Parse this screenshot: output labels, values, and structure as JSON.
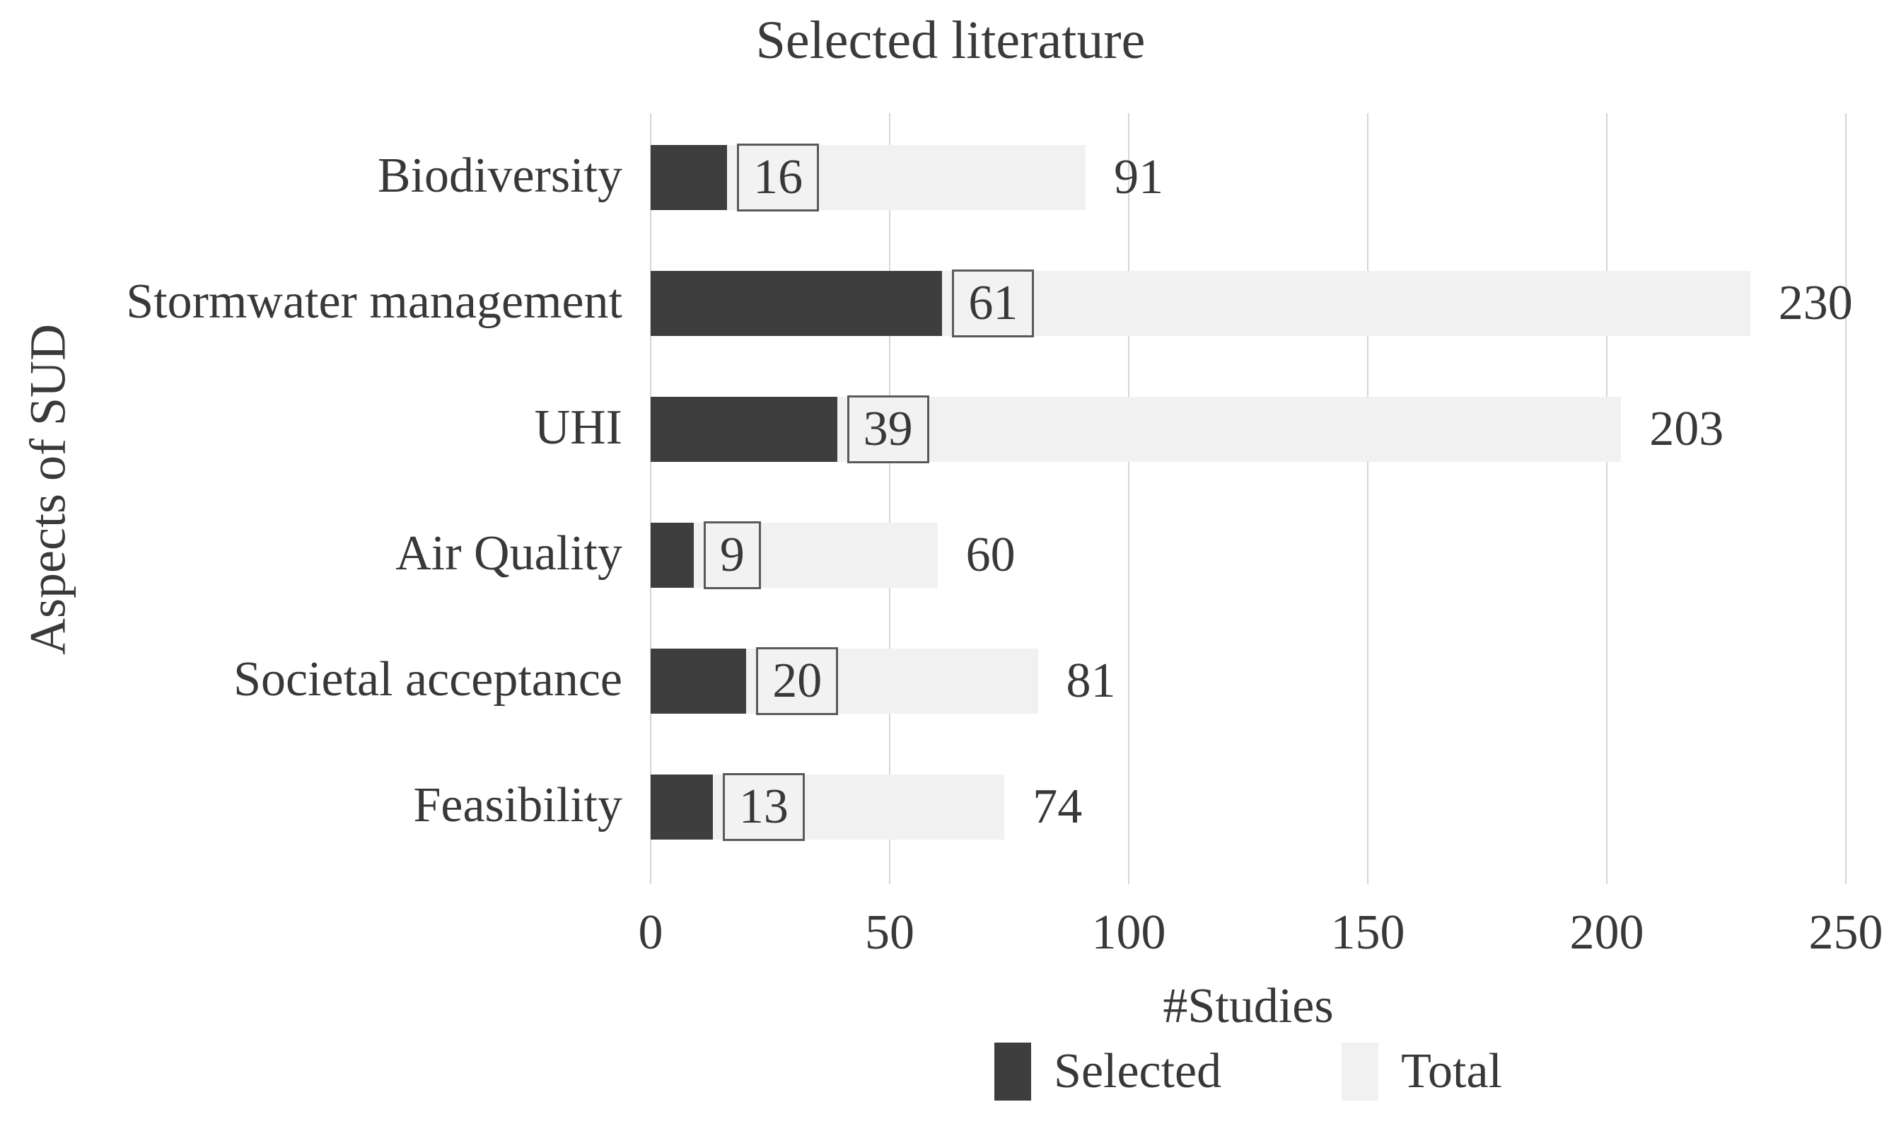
{
  "chart_data": {
    "type": "bar",
    "orientation": "horizontal",
    "title": "Selected literature",
    "xlabel": "#Studies",
    "ylabel": "Aspects of SUD",
    "categories": [
      "Biodiversity",
      "Stormwater management",
      "UHI",
      "Air Quality",
      "Societal acceptance",
      "Feasibility"
    ],
    "series": [
      {
        "name": "Selected",
        "color": "#3e3e3e",
        "values": [
          16,
          61,
          39,
          9,
          20,
          13
        ]
      },
      {
        "name": "Total",
        "color": "#f1f1f1",
        "values": [
          91,
          230,
          203,
          60,
          81,
          74
        ]
      }
    ],
    "xlim": [
      0,
      250
    ],
    "xticks": [
      0,
      50,
      100,
      150,
      200,
      250
    ],
    "grid": "vertical",
    "legend_position": "bottom",
    "colors": {
      "grid": "#d6d6d6",
      "text": "#383838",
      "label_box_bg": "#f2f2f2",
      "label_box_border": "#5a5a5a"
    }
  }
}
